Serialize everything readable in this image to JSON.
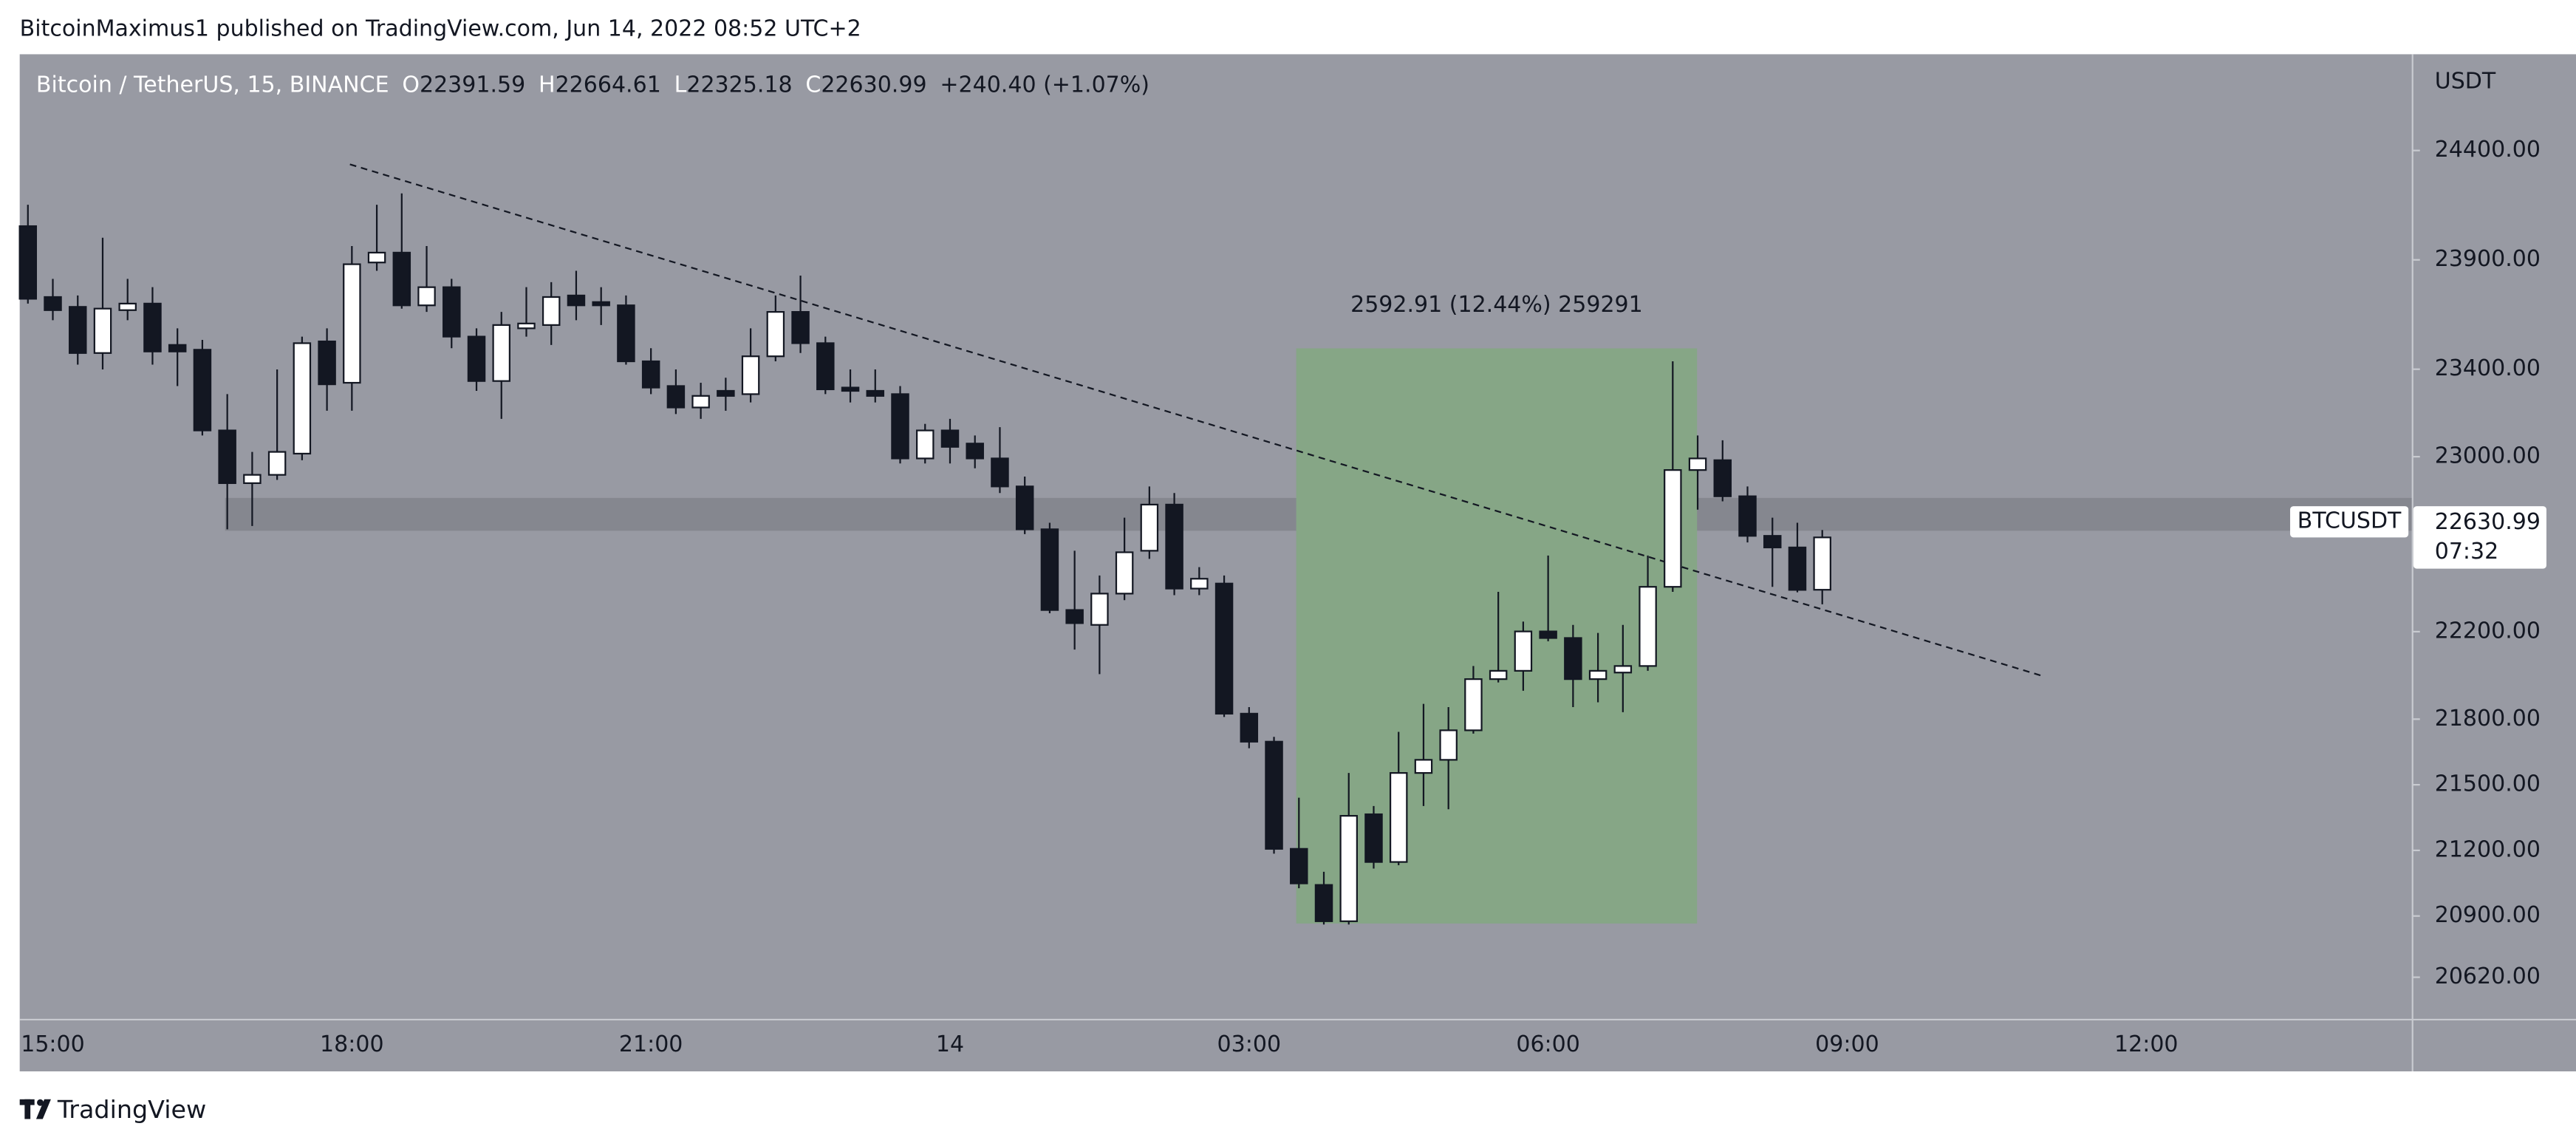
{
  "chart_data": {
    "type": "candlestick",
    "attribution": "BitcoinMaximus1 published on TradingView.com, Jun 14, 2022 08:52 UTC+2",
    "header": {
      "symbol": "Bitcoin / TetherUS, 15, BINANCE",
      "o_label": "O",
      "open": "22391.59",
      "h_label": "H",
      "high": "22664.61",
      "l_label": "L",
      "low": "22325.18",
      "c_label": "C",
      "close": "22630.99",
      "change": "+240.40 (+1.07%)"
    },
    "axis_unit": "USDT",
    "range_label": "2592.91 (12.44%) 259291",
    "symbol_tag": "BTCUSDT",
    "last_price": "22630.99",
    "countdown": "07:32",
    "categories": [
      null,
      "15:00",
      null,
      null,
      null,
      null,
      null,
      null,
      null,
      null,
      null,
      null,
      null,
      "18:00",
      null,
      null,
      null,
      null,
      null,
      null,
      null,
      null,
      null,
      null,
      null,
      "21:00",
      null,
      null,
      null,
      null,
      null,
      null,
      null,
      null,
      null,
      null,
      null,
      "14",
      null,
      null,
      null,
      null,
      null,
      null,
      null,
      null,
      null,
      null,
      null,
      "03:00",
      null,
      null,
      null,
      null,
      null,
      null,
      null,
      null,
      null,
      null,
      null,
      "06:00",
      null,
      null,
      null,
      null,
      null,
      null,
      null,
      null,
      null,
      null,
      null,
      "09:00",
      null,
      null,
      null,
      null,
      null,
      null,
      null,
      null,
      null,
      null,
      null,
      "12:00",
      null,
      null,
      null,
      null,
      null,
      null,
      null,
      null,
      null,
      null
    ],
    "open": [
      24054,
      23730,
      23685,
      23474,
      23670,
      23700,
      23511,
      23489,
      23120,
      22879,
      22917,
      23014,
      23527,
      23338,
      23888,
      23933,
      23692,
      23775,
      23549,
      23346,
      23587,
      23602,
      23737,
      23707,
      23692,
      23436,
      23323,
      23225,
      23301,
      23286,
      23459,
      23662,
      23519,
      23316,
      23301,
      23286,
      22992,
      23120,
      23060,
      22992,
      22864,
      22668,
      22299,
      22231,
      22374,
      22570,
      22781,
      22397,
      22420,
      21825,
      21697,
      21207,
      21042,
      20876,
      21365,
      21147,
      21554,
      21614,
      21749,
      21983,
      22021,
      22201,
      22171,
      21983,
      22013,
      22043,
      22405,
      22939,
      22984,
      22819,
      22638,
      22585,
      22391.59,
      null,
      null,
      null,
      null,
      null,
      null,
      null,
      null,
      null,
      null,
      null,
      null,
      null,
      null,
      null,
      null,
      null,
      null,
      null,
      null,
      null,
      null,
      null
    ],
    "high": [
      24152,
      23813,
      23737,
      24001,
      23813,
      23775,
      23587,
      23534,
      23286,
      23022,
      23399,
      23549,
      23587,
      23963,
      24152,
      24204,
      23963,
      23813,
      23587,
      23662,
      23775,
      23798,
      23850,
      23775,
      23737,
      23496,
      23399,
      23338,
      23361,
      23587,
      23737,
      23828,
      23549,
      23399,
      23399,
      23323,
      23150,
      23173,
      23097,
      23135,
      22909,
      22698,
      22570,
      22457,
      22721,
      22864,
      22834,
      22495,
      22457,
      21855,
      21719,
      21441,
      21102,
      21554,
      21403,
      21742,
      21870,
      21855,
      22043,
      22382,
      22246,
      22548,
      22231,
      22194,
      22231,
      22548,
      23436,
      23097,
      23075,
      22864,
      22721,
      22698,
      22664.61,
      null,
      null,
      null,
      null,
      null,
      null,
      null,
      null,
      null,
      null,
      null,
      null,
      null,
      null,
      null,
      null,
      null,
      null,
      null,
      null,
      null,
      null,
      null
    ],
    "low": [
      23700,
      23624,
      23421,
      23399,
      23624,
      23421,
      23323,
      23097,
      22668,
      22683,
      22894,
      22984,
      23210,
      23210,
      23850,
      23677,
      23662,
      23496,
      23301,
      23173,
      23549,
      23511,
      23624,
      23602,
      23421,
      23286,
      23195,
      23173,
      23210,
      23248,
      23436,
      23474,
      23286,
      23248,
      23248,
      22969,
      22969,
      22969,
      22947,
      22834,
      22646,
      22284,
      22118,
      22006,
      22344,
      22533,
      22367,
      22367,
      21810,
      21667,
      21185,
      21027,
      20861,
      20861,
      21117,
      21132,
      21403,
      21388,
      21734,
      21968,
      21930,
      22156,
      21855,
      21877,
      21832,
      22021,
      22382,
      22758,
      22796,
      22608,
      22405,
      22380,
      22325.18,
      null,
      null,
      null,
      null,
      null,
      null,
      null,
      null,
      null,
      null,
      null,
      null,
      null,
      null,
      null,
      null,
      null,
      null,
      null,
      null,
      null,
      null,
      null
    ],
    "close": [
      23722,
      23670,
      23474,
      23677,
      23700,
      23481,
      23481,
      23120,
      22879,
      22917,
      23022,
      23519,
      23331,
      23880,
      23933,
      23692,
      23775,
      23549,
      23346,
      23602,
      23609,
      23730,
      23692,
      23692,
      23436,
      23316,
      23225,
      23278,
      23278,
      23459,
      23662,
      23519,
      23308,
      23301,
      23278,
      22992,
      23120,
      23045,
      22992,
      22864,
      22668,
      22299,
      22239,
      22374,
      22563,
      22781,
      22397,
      22442,
      21825,
      21697,
      21207,
      21049,
      20876,
      21358,
      21147,
      21554,
      21614,
      21749,
      21983,
      22021,
      22201,
      22171,
      21983,
      22021,
      22043,
      22405,
      22939,
      22992,
      22819,
      22638,
      22585,
      22391,
      22630.99,
      null,
      null,
      null,
      null,
      null,
      null,
      null,
      null,
      null,
      null,
      null,
      null,
      null,
      null,
      null,
      null,
      null,
      null,
      null,
      null,
      null,
      null,
      null
    ],
    "up_color": "#ffffff",
    "down_color": "#131722",
    "ylim": [
      20430,
      24840
    ],
    "yticks": [
      {
        "value": 24400,
        "label": "24400.00"
      },
      {
        "value": 23900,
        "label": "23900.00"
      },
      {
        "value": 23400,
        "label": "23400.00"
      },
      {
        "value": 23000,
        "label": "23000.00"
      },
      {
        "value": 22200,
        "label": "22200.00"
      },
      {
        "value": 21800,
        "label": "21800.00"
      },
      {
        "value": 21500,
        "label": "21500.00"
      },
      {
        "value": 21200,
        "label": "21200.00"
      },
      {
        "value": 20900,
        "label": "20900.00"
      },
      {
        "value": 20620,
        "label": "20620.00"
      }
    ],
    "grid": false
  },
  "footer": {
    "brand": "TradingView"
  }
}
